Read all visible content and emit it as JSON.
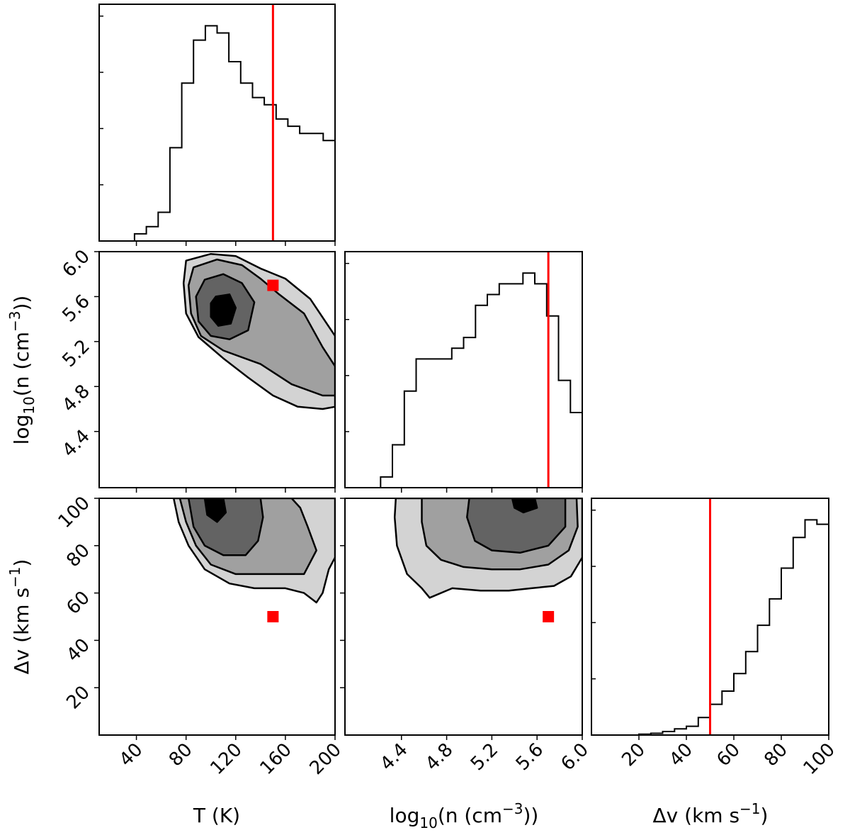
{
  "chart_data": {
    "type": "corner",
    "title": "",
    "parameters": [
      {
        "key": "T",
        "label": "T (K)",
        "range": [
          10,
          200
        ],
        "ticks": [
          "40",
          "80",
          "120",
          "160",
          "200"
        ]
      },
      {
        "key": "n",
        "label": "log10(n (cm^-3))",
        "range": [
          3.9,
          6.0
        ],
        "ticks": [
          "4.4",
          "4.8",
          "5.2",
          "5.6",
          "6.0"
        ]
      },
      {
        "key": "dv",
        "label": "Δv (km s^-1)",
        "range": [
          0,
          100
        ],
        "ticks": [
          "20",
          "40",
          "60",
          "80",
          "100"
        ]
      }
    ],
    "truth": {
      "T": 150,
      "n": 5.7,
      "dv": 50
    },
    "truth_color": "#ff0000",
    "histograms": {
      "T": {
        "edges": [
          10,
          19.5,
          29,
          38.5,
          48,
          57.5,
          67,
          76.5,
          86,
          95.5,
          105,
          114.5,
          124,
          133.5,
          143,
          152.5,
          162,
          171.5,
          181,
          190.5,
          200
        ],
        "counts": [
          0,
          0,
          0,
          0.01,
          0.02,
          0.04,
          0.13,
          0.22,
          0.28,
          0.3,
          0.29,
          0.25,
          0.22,
          0.2,
          0.19,
          0.17,
          0.16,
          0.15,
          0.15,
          0.14
        ]
      },
      "n": {
        "edges": [
          3.9,
          4.005,
          4.11,
          4.215,
          4.32,
          4.425,
          4.53,
          4.635,
          4.74,
          4.845,
          4.95,
          5.055,
          5.16,
          5.265,
          5.37,
          5.475,
          5.58,
          5.685,
          5.79,
          5.895,
          6.0
        ],
        "counts": [
          0,
          0,
          0,
          0.01,
          0.04,
          0.09,
          0.12,
          0.12,
          0.12,
          0.13,
          0.14,
          0.17,
          0.18,
          0.19,
          0.19,
          0.2,
          0.19,
          0.16,
          0.1,
          0.07
        ]
      },
      "dv": {
        "edges": [
          0,
          5,
          10,
          15,
          20,
          25,
          30,
          35,
          40,
          45,
          50,
          55,
          60,
          65,
          70,
          75,
          80,
          85,
          90,
          95,
          100
        ],
        "counts": [
          0,
          0,
          0,
          0,
          0.001,
          0.002,
          0.004,
          0.007,
          0.01,
          0.02,
          0.035,
          0.05,
          0.07,
          0.095,
          0.125,
          0.155,
          0.19,
          0.225,
          0.245,
          0.24
        ]
      }
    },
    "contour_colors": [
      "#d3d3d3",
      "#a0a0a0",
      "#636363",
      "#000000"
    ],
    "contours": {
      "n_vs_T": [
        [
          [
            80,
            5.92
          ],
          [
            100,
            5.98
          ],
          [
            120,
            5.96
          ],
          [
            140,
            5.85
          ],
          [
            160,
            5.76
          ],
          [
            180,
            5.58
          ],
          [
            200,
            5.25
          ],
          [
            200,
            4.62
          ],
          [
            190,
            4.6
          ],
          [
            170,
            4.62
          ],
          [
            150,
            4.72
          ],
          [
            130,
            4.88
          ],
          [
            110,
            5.05
          ],
          [
            90,
            5.24
          ],
          [
            80,
            5.45
          ],
          [
            78,
            5.72
          ]
        ],
        [
          [
            86,
            5.86
          ],
          [
            105,
            5.93
          ],
          [
            125,
            5.88
          ],
          [
            140,
            5.76
          ],
          [
            155,
            5.62
          ],
          [
            175,
            5.45
          ],
          [
            190,
            5.15
          ],
          [
            200,
            4.98
          ],
          [
            200,
            4.72
          ],
          [
            190,
            4.72
          ],
          [
            165,
            4.82
          ],
          [
            140,
            5.0
          ],
          [
            110,
            5.12
          ],
          [
            92,
            5.25
          ],
          [
            84,
            5.45
          ],
          [
            82,
            5.7
          ]
        ],
        [
          [
            95,
            5.75
          ],
          [
            110,
            5.8
          ],
          [
            125,
            5.72
          ],
          [
            135,
            5.55
          ],
          [
            130,
            5.3
          ],
          [
            115,
            5.22
          ],
          [
            100,
            5.25
          ],
          [
            90,
            5.38
          ],
          [
            88,
            5.6
          ]
        ],
        [
          [
            104,
            5.6
          ],
          [
            115,
            5.62
          ],
          [
            120,
            5.5
          ],
          [
            116,
            5.36
          ],
          [
            106,
            5.34
          ],
          [
            100,
            5.42
          ],
          [
            100,
            5.54
          ]
        ]
      ],
      "dv_vs_T": [
        [
          [
            70,
            100
          ],
          [
            200,
            100
          ],
          [
            200,
            75
          ],
          [
            195,
            70
          ],
          [
            190,
            60
          ],
          [
            185,
            56
          ],
          [
            175,
            60
          ],
          [
            160,
            62
          ],
          [
            135,
            62
          ],
          [
            115,
            64
          ],
          [
            95,
            70
          ],
          [
            82,
            80
          ],
          [
            74,
            90
          ]
        ],
        [
          [
            75,
            100
          ],
          [
            165,
            100
          ],
          [
            172,
            96
          ],
          [
            178,
            88
          ],
          [
            185,
            78
          ],
          [
            175,
            68
          ],
          [
            150,
            68
          ],
          [
            120,
            68
          ],
          [
            100,
            72
          ],
          [
            88,
            80
          ],
          [
            80,
            90
          ]
        ],
        [
          [
            82,
            100
          ],
          [
            140,
            100
          ],
          [
            142,
            92
          ],
          [
            138,
            82
          ],
          [
            128,
            76
          ],
          [
            110,
            76
          ],
          [
            95,
            80
          ],
          [
            86,
            88
          ]
        ],
        [
          [
            95,
            100
          ],
          [
            110,
            100
          ],
          [
            112,
            94
          ],
          [
            105,
            90
          ],
          [
            97,
            93
          ]
        ]
      ],
      "dv_vs_n": [
        [
          [
            4.35,
            100
          ],
          [
            6.0,
            100
          ],
          [
            6.0,
            75
          ],
          [
            5.9,
            67
          ],
          [
            5.75,
            63
          ],
          [
            5.55,
            62
          ],
          [
            5.35,
            61
          ],
          [
            5.1,
            61
          ],
          [
            4.85,
            62
          ],
          [
            4.65,
            58
          ],
          [
            4.58,
            62
          ],
          [
            4.45,
            68
          ],
          [
            4.36,
            80
          ],
          [
            4.34,
            92
          ]
        ],
        [
          [
            4.58,
            100
          ],
          [
            5.95,
            100
          ],
          [
            5.96,
            88
          ],
          [
            5.88,
            78
          ],
          [
            5.7,
            72
          ],
          [
            5.45,
            70
          ],
          [
            5.2,
            70
          ],
          [
            4.95,
            71
          ],
          [
            4.75,
            74
          ],
          [
            4.62,
            80
          ],
          [
            4.58,
            90
          ]
        ],
        [
          [
            5.0,
            100
          ],
          [
            5.85,
            100
          ],
          [
            5.85,
            88
          ],
          [
            5.7,
            80
          ],
          [
            5.45,
            77
          ],
          [
            5.2,
            78
          ],
          [
            5.05,
            82
          ],
          [
            4.98,
            92
          ]
        ],
        [
          [
            5.38,
            100
          ],
          [
            5.58,
            100
          ],
          [
            5.6,
            96
          ],
          [
            5.48,
            94
          ],
          [
            5.4,
            96
          ]
        ]
      ]
    }
  },
  "axis_labels": {
    "T": "T (K)",
    "n_main": "log",
    "n_sub": "10",
    "n_mid": "(n (cm",
    "n_sup": "−3",
    "n_end": "))",
    "dv_main": "Δv (km s",
    "dv_sup": "−1",
    "dv_end": ")"
  }
}
